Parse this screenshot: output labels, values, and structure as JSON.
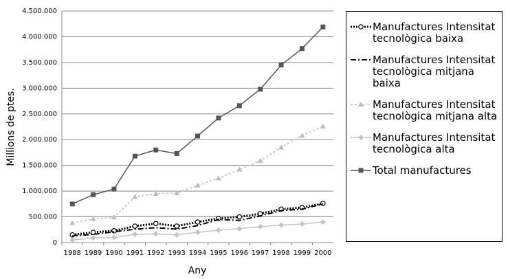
{
  "chart_data": {
    "type": "line",
    "y_label": "Millions de ptes.",
    "x_label": "Any",
    "categories": [
      "1988",
      "1989",
      "1990",
      "1991",
      "1992",
      "1993",
      "1994",
      "1995",
      "1996",
      "1997",
      "1998",
      "1999",
      "2000"
    ],
    "ylim": [
      0,
      4500000
    ],
    "yticks": [
      0,
      {
        "value": 500000,
        "label": "500.000"
      },
      {
        "value": 1000000,
        "label": "1.000.000"
      },
      {
        "value": 1500000,
        "label": "1.500.000"
      },
      {
        "value": 2000000,
        "label": "2.000.000"
      },
      {
        "value": 2500000,
        "label": "2.500.000"
      },
      {
        "value": 3000000,
        "label": "3.000.000"
      },
      {
        "value": 3500000,
        "label": "3.500.000"
      },
      {
        "value": 4000000,
        "label": "4.000.000"
      },
      {
        "value": 4500000,
        "label": "4.500.000"
      }
    ],
    "grid": true,
    "series": [
      {
        "name": "Manufactures Intensitat tecnològica baixa",
        "color": "#000000",
        "dash": "2,2",
        "width": 3,
        "marker": "circle",
        "values": [
          150000,
          200000,
          230000,
          320000,
          370000,
          320000,
          400000,
          470000,
          500000,
          560000,
          650000,
          680000,
          760000
        ]
      },
      {
        "name": "Manufactures Intensitat tecnològica mitjana baixa",
        "color": "#000000",
        "dash": "8,3,2,3",
        "width": 2,
        "marker": "none",
        "values": [
          130000,
          160000,
          210000,
          260000,
          290000,
          260000,
          330000,
          450000,
          430000,
          520000,
          620000,
          650000,
          750000
        ]
      },
      {
        "name": "Manufactures Intensitat tecnològica mitjana alta",
        "color": "#bbbbbb",
        "dash": "3,3",
        "width": 1.5,
        "marker": "triangle",
        "values": [
          380000,
          460000,
          490000,
          890000,
          950000,
          960000,
          1110000,
          1250000,
          1420000,
          1590000,
          1850000,
          2080000,
          2260000
        ]
      },
      {
        "name": "Manufactures Intensitat tecnològica alta",
        "color": "#c4c4c4",
        "dash": "none",
        "width": 1.5,
        "marker": "diamond",
        "values": [
          50000,
          90000,
          100000,
          160000,
          170000,
          150000,
          200000,
          240000,
          270000,
          310000,
          340000,
          360000,
          400000
        ]
      },
      {
        "name": "Total manufactures",
        "color": "#555555",
        "dash": "none",
        "width": 1.5,
        "marker": "square",
        "values": [
          750000,
          930000,
          1040000,
          1680000,
          1800000,
          1730000,
          2070000,
          2420000,
          2660000,
          2980000,
          3450000,
          3770000,
          4190000
        ]
      }
    ]
  }
}
